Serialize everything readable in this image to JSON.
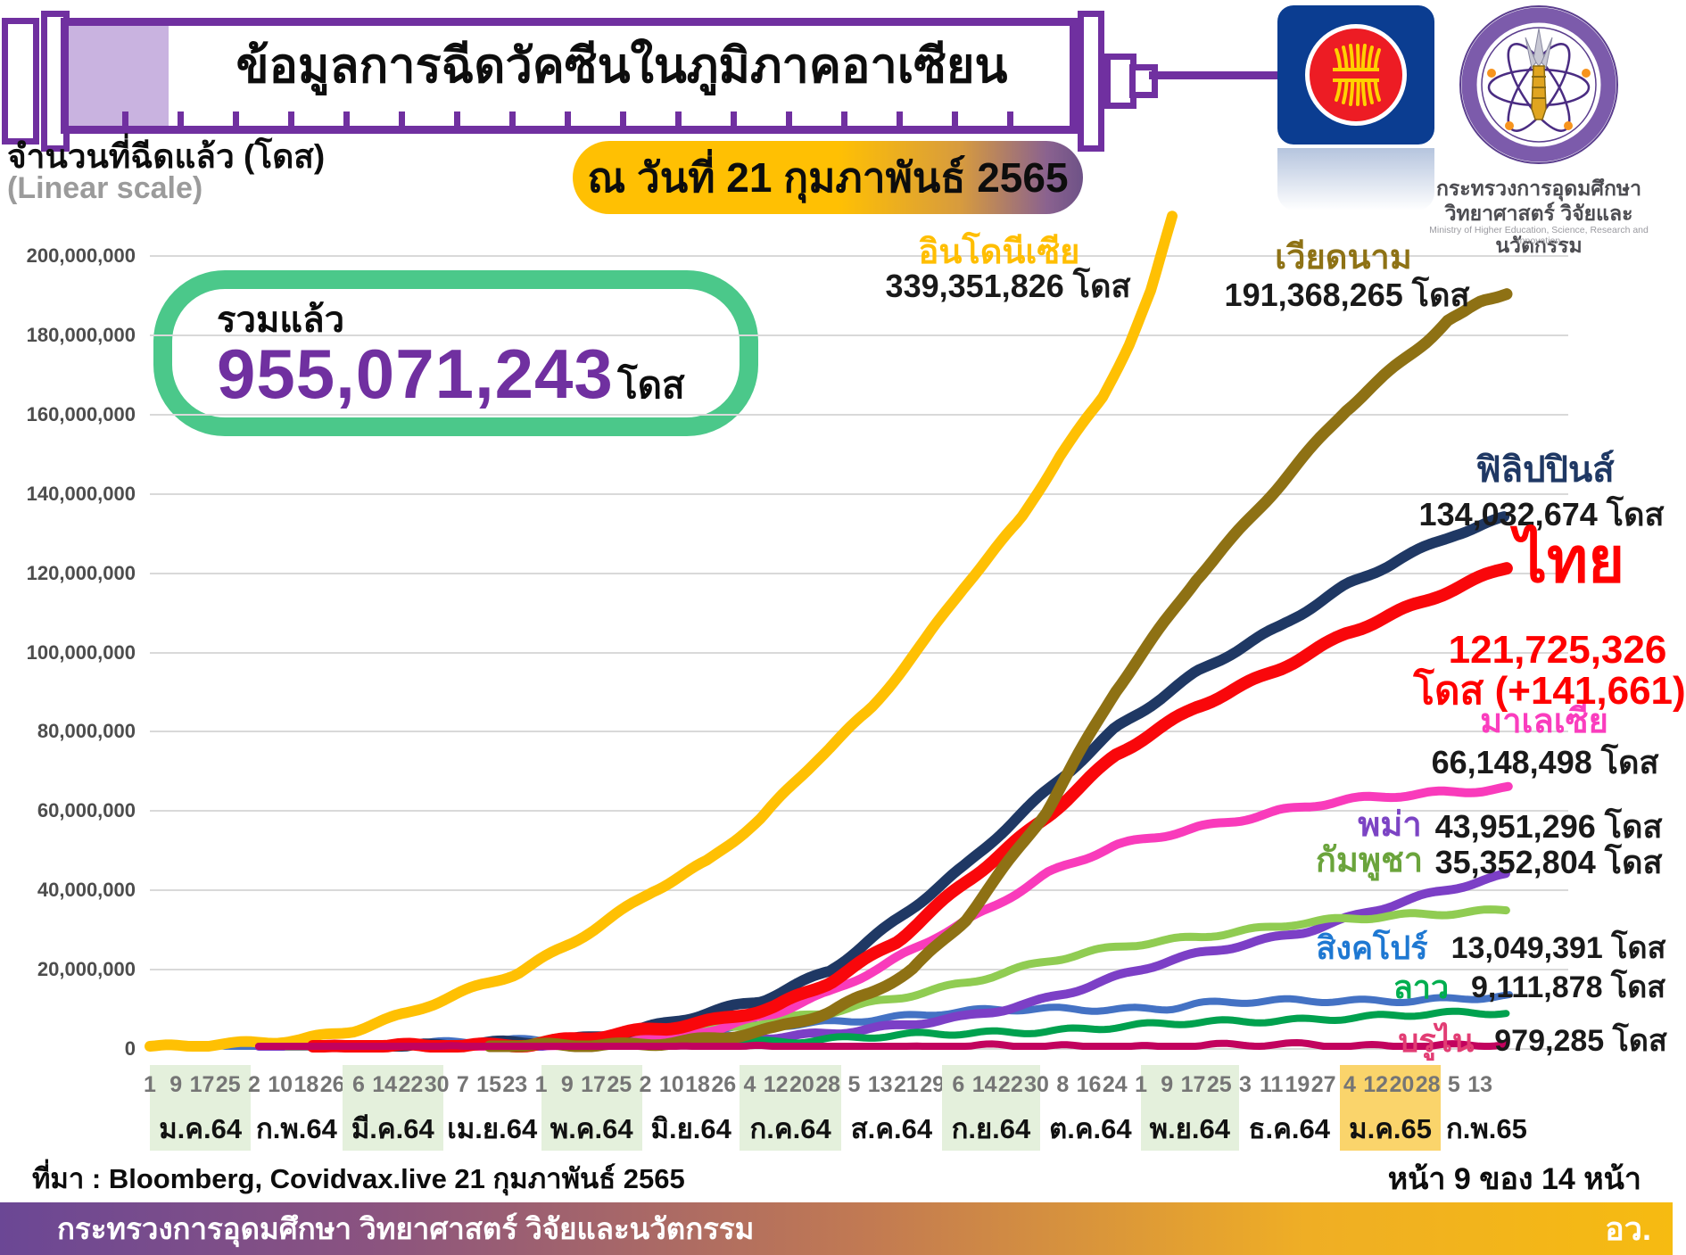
{
  "header": {
    "title": "ข้อมูลการฉีดวัคซีนในภูมิภาคอาเซียน",
    "date_badge": "ณ วันที่ 21 กุมภาพันธ์ 2565",
    "y_axis_title": "จำนวนที่ฉีดแล้ว (โดส)",
    "scale_note": "(Linear scale)",
    "total": {
      "label": "รวมแล้ว",
      "value": "955,071,243",
      "unit": "โดส"
    }
  },
  "ministry": {
    "line1": "กระทรวงการอุดมศึกษา",
    "line2": "วิทยาศาสตร์ วิจัยและนวัตกรรม",
    "line3": "Ministry of Higher Education, Science, Research and Innovation"
  },
  "chart_data": {
    "type": "line",
    "title": "ข้อมูลการฉีดวัคซีนในภูมิภาคอาเซียน",
    "ylabel": "จำนวนที่ฉีดแล้ว (โดส)",
    "ylim": [
      0,
      200000000
    ],
    "grid": true,
    "y_ticks": [
      "200,000,000",
      "180,000,000",
      "160,000,000",
      "140,000,000",
      "120,000,000",
      "100,000,000",
      "80,000,000",
      "60,000,000",
      "40,000,000",
      "20,000,000",
      "0"
    ],
    "x_range_note": "ม.ค.64 ถึง ก.พ.65",
    "series": [
      {
        "id": "singapore",
        "name": "สิงคโปร์",
        "value": "13,049,391 โดส",
        "doses": 13049391,
        "name_color": "#1E78D2",
        "line_color": "#4472C4",
        "width": 8,
        "points": [
          [
            0,
            0.08
          ],
          [
            0.08,
            0.3
          ],
          [
            0.16,
            0.8
          ],
          [
            0.24,
            1.6
          ],
          [
            0.32,
            2.8
          ],
          [
            0.4,
            4.3
          ],
          [
            0.46,
            5.8
          ],
          [
            0.52,
            7.5
          ],
          [
            0.58,
            9
          ],
          [
            0.64,
            9.8
          ],
          [
            0.7,
            10.2
          ],
          [
            0.75,
            10.5
          ],
          [
            0.77,
            11.4
          ],
          [
            0.82,
            11.8
          ],
          [
            0.88,
            12.2
          ],
          [
            0.94,
            12.6
          ],
          [
            1,
            13.05
          ]
        ]
      },
      {
        "id": "myanmar",
        "name": "พม่า",
        "value": "43,951,296 โดส",
        "doses": 43951296,
        "name_color": "#7C44C4",
        "line_color": "#7C3FC6",
        "width": 10,
        "points": [
          [
            0.08,
            0.05
          ],
          [
            0.18,
            0.5
          ],
          [
            0.28,
            1.3
          ],
          [
            0.36,
            2
          ],
          [
            0.44,
            3
          ],
          [
            0.5,
            4
          ],
          [
            0.55,
            5.5
          ],
          [
            0.6,
            8
          ],
          [
            0.65,
            12
          ],
          [
            0.7,
            17
          ],
          [
            0.75,
            22
          ],
          [
            0.8,
            26
          ],
          [
            0.85,
            30
          ],
          [
            0.9,
            35
          ],
          [
            0.95,
            39.5
          ],
          [
            1,
            44
          ]
        ]
      },
      {
        "id": "cambodia",
        "name": "กัมพูชา",
        "value": "35,352,804 โดส",
        "doses": 35352804,
        "name_color": "#6BA43C",
        "line_color": "#90CC52",
        "width": 9,
        "points": [
          [
            0.1,
            0.05
          ],
          [
            0.2,
            0.8
          ],
          [
            0.28,
            1.8
          ],
          [
            0.34,
            3
          ],
          [
            0.4,
            4.5
          ],
          [
            0.45,
            6.5
          ],
          [
            0.5,
            9
          ],
          [
            0.55,
            13
          ],
          [
            0.6,
            17
          ],
          [
            0.66,
            22
          ],
          [
            0.72,
            26
          ],
          [
            0.78,
            29
          ],
          [
            0.84,
            31.5
          ],
          [
            0.9,
            33
          ],
          [
            0.95,
            34.3
          ],
          [
            1,
            35.4
          ]
        ]
      },
      {
        "id": "indonesia",
        "name": "อินโดนีเซีย",
        "value": "339,351,826 โดส",
        "doses": 339351826,
        "name_color": "#FFBE00",
        "line_color": "#FFC003",
        "width": 12,
        "points": [
          [
            0,
            0.2
          ],
          [
            0.06,
            1
          ],
          [
            0.11,
            2.5
          ],
          [
            0.15,
            5
          ],
          [
            0.19,
            9
          ],
          [
            0.23,
            14
          ],
          [
            0.27,
            19
          ],
          [
            0.31,
            27
          ],
          [
            0.37,
            40
          ],
          [
            0.41,
            47
          ],
          [
            0.45,
            58
          ],
          [
            0.49,
            73
          ],
          [
            0.53,
            86
          ],
          [
            0.57,
            103
          ],
          [
            0.6,
            117
          ],
          [
            0.64,
            133
          ],
          [
            0.67,
            150
          ],
          [
            0.7,
            164
          ],
          [
            0.72,
            178
          ],
          [
            0.737,
            192
          ],
          [
            0.752,
            210
          ]
        ]
      },
      {
        "id": "laos",
        "name": "ลาว",
        "value": "9,111,878 โดส",
        "doses": 9111878,
        "name_color": "#00AE4F",
        "line_color": "#00A14E",
        "width": 8,
        "points": [
          [
            0.1,
            0.05
          ],
          [
            0.2,
            0.4
          ],
          [
            0.3,
            0.9
          ],
          [
            0.4,
            1.6
          ],
          [
            0.48,
            2.3
          ],
          [
            0.55,
            3.2
          ],
          [
            0.62,
            4.2
          ],
          [
            0.7,
            5.4
          ],
          [
            0.78,
            6.6
          ],
          [
            0.86,
            7.8
          ],
          [
            0.93,
            8.5
          ],
          [
            1,
            9.11
          ]
        ]
      },
      {
        "id": "malaysia",
        "name": "มาเลเซีย",
        "value": "66,148,498 โดส",
        "doses": 66148498,
        "name_color": "#FA3DBE",
        "line_color": "#F93BBB",
        "width": 10,
        "points": [
          [
            0.2,
            0.2
          ],
          [
            0.3,
            1
          ],
          [
            0.37,
            3
          ],
          [
            0.42,
            5.5
          ],
          [
            0.46,
            9
          ],
          [
            0.5,
            14
          ],
          [
            0.54,
            21
          ],
          [
            0.58,
            29
          ],
          [
            0.62,
            36
          ],
          [
            0.66,
            44
          ],
          [
            0.71,
            51
          ],
          [
            0.77,
            56
          ],
          [
            0.83,
            60
          ],
          [
            0.88,
            62.5
          ],
          [
            0.94,
            64.5
          ],
          [
            1,
            66.1
          ]
        ]
      },
      {
        "id": "philippines",
        "name": "ฟิลิปปินส์",
        "value": "134,032,674 โดส",
        "doses": 134032674,
        "name_color": "#1F3864",
        "line_color": "#1F3864",
        "width": 12,
        "points": [
          [
            0.13,
            0.1
          ],
          [
            0.22,
            0.8
          ],
          [
            0.3,
            2
          ],
          [
            0.36,
            5
          ],
          [
            0.4,
            8
          ],
          [
            0.45,
            12
          ],
          [
            0.5,
            20
          ],
          [
            0.55,
            33
          ],
          [
            0.6,
            46
          ],
          [
            0.66,
            65
          ],
          [
            0.71,
            81
          ],
          [
            0.77,
            95
          ],
          [
            0.83,
            106
          ],
          [
            0.88,
            117
          ],
          [
            0.92,
            124
          ],
          [
            0.96,
            130
          ],
          [
            1,
            134
          ]
        ]
      },
      {
        "id": "thailand",
        "name": "ไทย",
        "value": "121,725,326",
        "unit_line": "โดส (+141,661)",
        "doses": 121725326,
        "daily_increase": 141661,
        "name_color": "#FF0000",
        "line_color": "#F9070B",
        "width": 14,
        "points": [
          [
            0.12,
            0.05
          ],
          [
            0.2,
            0.6
          ],
          [
            0.28,
            1.5
          ],
          [
            0.33,
            3
          ],
          [
            0.38,
            5
          ],
          [
            0.42,
            7.5
          ],
          [
            0.46,
            11
          ],
          [
            0.5,
            17
          ],
          [
            0.55,
            27
          ],
          [
            0.6,
            42
          ],
          [
            0.66,
            59
          ],
          [
            0.71,
            74
          ],
          [
            0.77,
            86
          ],
          [
            0.83,
            96
          ],
          [
            0.88,
            105
          ],
          [
            0.94,
            113
          ],
          [
            1,
            121.7
          ]
        ]
      },
      {
        "id": "vietnam",
        "name": "เวียดนาม",
        "value": "191,368,265 โดส",
        "doses": 191368265,
        "name_color": "#8E7215",
        "line_color": "#8E7114",
        "width": 13,
        "points": [
          [
            0.25,
            0.3
          ],
          [
            0.35,
            1
          ],
          [
            0.42,
            3
          ],
          [
            0.46,
            5
          ],
          [
            0.5,
            9
          ],
          [
            0.53,
            14
          ],
          [
            0.56,
            20
          ],
          [
            0.6,
            33
          ],
          [
            0.66,
            60
          ],
          [
            0.71,
            90
          ],
          [
            0.77,
            119
          ],
          [
            0.83,
            142
          ],
          [
            0.88,
            161
          ],
          [
            0.91,
            170
          ],
          [
            0.94,
            179
          ],
          [
            0.955,
            184
          ],
          [
            0.965,
            185.5
          ],
          [
            0.98,
            189
          ],
          [
            1,
            191.4
          ]
        ]
      },
      {
        "id": "brunei",
        "name": "บรูไน",
        "value": "979,285 โดส",
        "doses": 979285,
        "name_color": "#E23D74",
        "line_color": "#C2025E",
        "width": 8,
        "points": [
          [
            0.08,
            0.02
          ],
          [
            0.3,
            0.08
          ],
          [
            0.45,
            0.2
          ],
          [
            0.55,
            0.35
          ],
          [
            0.65,
            0.55
          ],
          [
            0.75,
            0.75
          ],
          [
            0.85,
            0.88
          ],
          [
            1,
            0.98
          ]
        ]
      }
    ],
    "x_axis_months": [
      {
        "label": "ม.ค.64",
        "start": 0,
        "len": 31,
        "days": [
          1,
          9,
          17,
          25
        ],
        "highlight": "green"
      },
      {
        "label": "ก.พ.64",
        "start": 31,
        "len": 28,
        "days": [
          2,
          10,
          18,
          26
        ],
        "highlight": null
      },
      {
        "label": "มี.ค.64",
        "start": 59,
        "len": 31,
        "days": [
          6,
          14,
          22,
          30
        ],
        "highlight": "green"
      },
      {
        "label": "เม.ย.64",
        "start": 90,
        "len": 30,
        "days": [
          7,
          15,
          23
        ],
        "highlight": null
      },
      {
        "label": "พ.ค.64",
        "start": 120,
        "len": 31,
        "days": [
          1,
          9,
          17,
          25
        ],
        "highlight": "green"
      },
      {
        "label": "มิ.ย.64",
        "start": 151,
        "len": 30,
        "days": [
          2,
          10,
          18,
          26
        ],
        "highlight": null
      },
      {
        "label": "ก.ค.64",
        "start": 181,
        "len": 31,
        "days": [
          4,
          12,
          20,
          28
        ],
        "highlight": "green"
      },
      {
        "label": "ส.ค.64",
        "start": 212,
        "len": 31,
        "days": [
          5,
          13,
          21,
          29
        ],
        "highlight": null
      },
      {
        "label": "ก.ย.64",
        "start": 243,
        "len": 30,
        "days": [
          6,
          14,
          22,
          30
        ],
        "highlight": "green"
      },
      {
        "label": "ต.ค.64",
        "start": 273,
        "len": 31,
        "days": [
          8,
          16,
          24
        ],
        "highlight": null
      },
      {
        "label": "พ.ย.64",
        "start": 304,
        "len": 30,
        "days": [
          1,
          9,
          17,
          25
        ],
        "highlight": "green"
      },
      {
        "label": "ธ.ค.64",
        "start": 334,
        "len": 31,
        "days": [
          3,
          11,
          19,
          27
        ],
        "highlight": null
      },
      {
        "label": "ม.ค.65",
        "start": 365,
        "len": 31,
        "days": [
          4,
          12,
          20,
          28
        ],
        "highlight": "gold"
      },
      {
        "label": "ก.พ.65",
        "start": 396,
        "len": 28,
        "days": [
          5,
          13
        ],
        "highlight": null
      }
    ],
    "highlight_colors": {
      "green": "#E4F0DC",
      "gold": "#FAD46B"
    }
  },
  "footer": {
    "source": "ที่มา : Bloomberg, Covidvax.live 21 กุมภาพันธ์ 2565",
    "page": "หน้า 9 ของ 14 หน้า",
    "ministry_name": "กระทรวงการอุดมศึกษา วิทยาศาสตร์ วิจัยและนวัตกรรม",
    "abbr": "อว."
  }
}
